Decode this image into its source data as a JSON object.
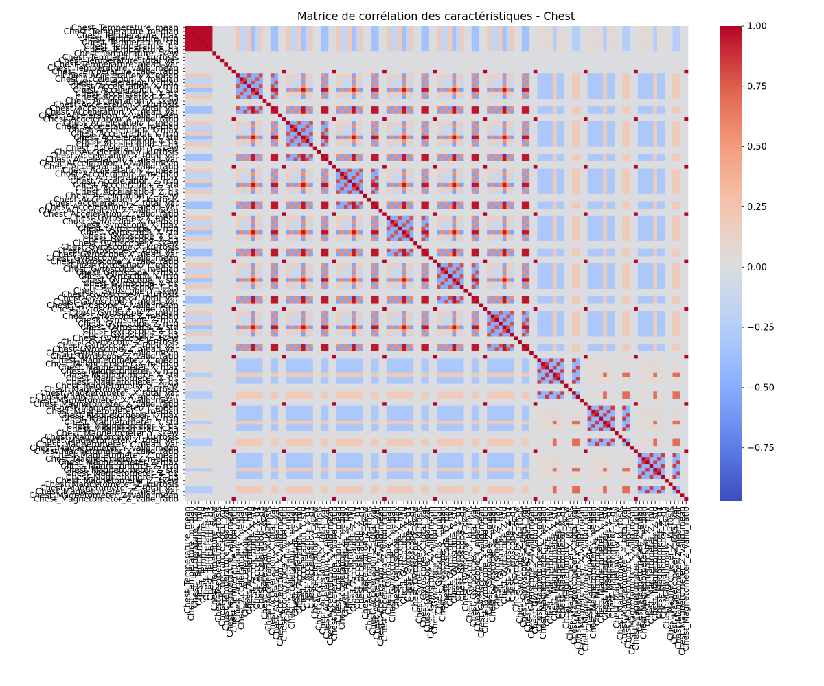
{
  "chart_data": {
    "type": "heatmap",
    "title": "Matrice de corrélation des caractéristiques - Chest",
    "variables": [
      "Chest_Temperature_mean",
      "Chest_Temperature_median",
      "Chest_Temperature_max",
      "Chest_Temperature_min",
      "Chest_Temperature_std",
      "Chest_Temperature_q1",
      "Chest_Temperature_q3",
      "Chest_Temperature_skew",
      "Chest_Temperature_kurtosis",
      "Chest_Temperature_total_var",
      "Chest_Temperature_mean_var",
      "Chest_Temperature_valid_mean",
      "Chest_Temperature_valid_ratio",
      "Chest_Acceleration_X_mean",
      "Chest_Acceleration_X_median",
      "Chest_Acceleration_X_max",
      "Chest_Acceleration_X_min",
      "Chest_Acceleration_X_std",
      "Chest_Acceleration_X_q1",
      "Chest_Acceleration_X_q3",
      "Chest_Acceleration_X_skew",
      "Chest_Acceleration_X_kurtosis",
      "Chest_Acceleration_X_total_var",
      "Chest_Acceleration_X_mean_var",
      "Chest_Acceleration_X_valid_mean",
      "Chest_Acceleration_X_valid_ratio",
      "Chest_Acceleration_Y_mean",
      "Chest_Acceleration_Y_median",
      "Chest_Acceleration_Y_max",
      "Chest_Acceleration_Y_min",
      "Chest_Acceleration_Y_std",
      "Chest_Acceleration_Y_q1",
      "Chest_Acceleration_Y_q3",
      "Chest_Acceleration_Y_skew",
      "Chest_Acceleration_Y_kurtosis",
      "Chest_Acceleration_Y_total_var",
      "Chest_Acceleration_Y_mean_var",
      "Chest_Acceleration_Y_valid_mean",
      "Chest_Acceleration_Y_valid_ratio",
      "Chest_Acceleration_Z_mean",
      "Chest_Acceleration_Z_median",
      "Chest_Acceleration_Z_max",
      "Chest_Acceleration_Z_min",
      "Chest_Acceleration_Z_std",
      "Chest_Acceleration_Z_q1",
      "Chest_Acceleration_Z_q3",
      "Chest_Acceleration_Z_skew",
      "Chest_Acceleration_Z_kurtosis",
      "Chest_Acceleration_Z_total_var",
      "Chest_Acceleration_Z_mean_var",
      "Chest_Acceleration_Z_valid_mean",
      "Chest_Acceleration_Z_valid_ratio",
      "Chest_Gyroscope_X_mean",
      "Chest_Gyroscope_X_median",
      "Chest_Gyroscope_X_max",
      "Chest_Gyroscope_X_min",
      "Chest_Gyroscope_X_std",
      "Chest_Gyroscope_X_q1",
      "Chest_Gyroscope_X_q3",
      "Chest_Gyroscope_X_skew",
      "Chest_Gyroscope_X_kurtosis",
      "Chest_Gyroscope_X_total_var",
      "Chest_Gyroscope_X_mean_var",
      "Chest_Gyroscope_X_valid_mean",
      "Chest_Gyroscope_X_valid_ratio",
      "Chest_Gyroscope_Y_mean",
      "Chest_Gyroscope_Y_median",
      "Chest_Gyroscope_Y_max",
      "Chest_Gyroscope_Y_min",
      "Chest_Gyroscope_Y_std",
      "Chest_Gyroscope_Y_q1",
      "Chest_Gyroscope_Y_q3",
      "Chest_Gyroscope_Y_skew",
      "Chest_Gyroscope_Y_kurtosis",
      "Chest_Gyroscope_Y_total_var",
      "Chest_Gyroscope_Y_mean_var",
      "Chest_Gyroscope_Y_valid_mean",
      "Chest_Gyroscope_Y_valid_ratio",
      "Chest_Gyroscope_Z_mean",
      "Chest_Gyroscope_Z_median",
      "Chest_Gyroscope_Z_max",
      "Chest_Gyroscope_Z_min",
      "Chest_Gyroscope_Z_std",
      "Chest_Gyroscope_Z_q1",
      "Chest_Gyroscope_Z_q3",
      "Chest_Gyroscope_Z_skew",
      "Chest_Gyroscope_Z_kurtosis",
      "Chest_Gyroscope_Z_total_var",
      "Chest_Gyroscope_Z_mean_var",
      "Chest_Gyroscope_Z_valid_mean",
      "Chest_Gyroscope_Z_valid_ratio",
      "Chest_Magnetometer_X_mean",
      "Chest_Magnetometer_X_median",
      "Chest_Magnetometer_X_max",
      "Chest_Magnetometer_X_min",
      "Chest_Magnetometer_X_std",
      "Chest_Magnetometer_X_q1",
      "Chest_Magnetometer_X_q3",
      "Chest_Magnetometer_X_skew",
      "Chest_Magnetometer_X_kurtosis",
      "Chest_Magnetometer_X_total_var",
      "Chest_Magnetometer_X_mean_var",
      "Chest_Magnetometer_X_valid_mean",
      "Chest_Magnetometer_X_valid_ratio",
      "Chest_Magnetometer_Y_mean",
      "Chest_Magnetometer_Y_median",
      "Chest_Magnetometer_Y_max",
      "Chest_Magnetometer_Y_min",
      "Chest_Magnetometer_Y_std",
      "Chest_Magnetometer_Y_q1",
      "Chest_Magnetometer_Y_q3",
      "Chest_Magnetometer_Y_skew",
      "Chest_Magnetometer_Y_kurtosis",
      "Chest_Magnetometer_Y_total_var",
      "Chest_Magnetometer_Y_mean_var",
      "Chest_Magnetometer_Y_valid_mean",
      "Chest_Magnetometer_Y_valid_ratio",
      "Chest_Magnetometer_Z_mean",
      "Chest_Magnetometer_Z_median",
      "Chest_Magnetometer_Z_max",
      "Chest_Magnetometer_Z_min",
      "Chest_Magnetometer_Z_std",
      "Chest_Magnetometer_Z_q1",
      "Chest_Magnetometer_Z_q3",
      "Chest_Magnetometer_Z_skew",
      "Chest_Magnetometer_Z_kurtosis",
      "Chest_Magnetometer_Z_total_var",
      "Chest_Magnetometer_Z_mean_var",
      "Chest_Magnetometer_Z_valid_mean",
      "Chest_Magnetometer_Z_valid_ratio"
    ],
    "group_size": 13,
    "groups": [
      "Temperature",
      "Acceleration_X",
      "Acceleration_Y",
      "Acceleration_Z",
      "Gyroscope_X",
      "Gyroscope_Y",
      "Gyroscope_Z",
      "Magnetometer_X",
      "Magnetometer_Y",
      "Magnetometer_Z"
    ],
    "value_range": [
      -0.97,
      1.0
    ],
    "colormap": "coolwarm",
    "colorbar": {
      "ticks": [
        1.0,
        0.75,
        0.5,
        0.25,
        0.0,
        -0.25,
        -0.5,
        -0.75
      ],
      "tick_labels": [
        "1.00",
        "0.75",
        "0.50",
        "0.25",
        "0.00",
        "−0.25",
        "−0.50",
        "−0.75"
      ]
    },
    "block_values": {
      "Temperature": {
        "within": 0.98,
        "to_motion": -0.35,
        "to_magnetometer": -0.25
      },
      "motion_variance_features": 0.95,
      "motion_within_group": 0.8,
      "motion_other": 0.15,
      "magnetometer_within_group": 0.85,
      "magnetometer_to_motion": 0.2,
      "constant_features": 0.0
    },
    "legend_placement": "right",
    "grid": false
  }
}
